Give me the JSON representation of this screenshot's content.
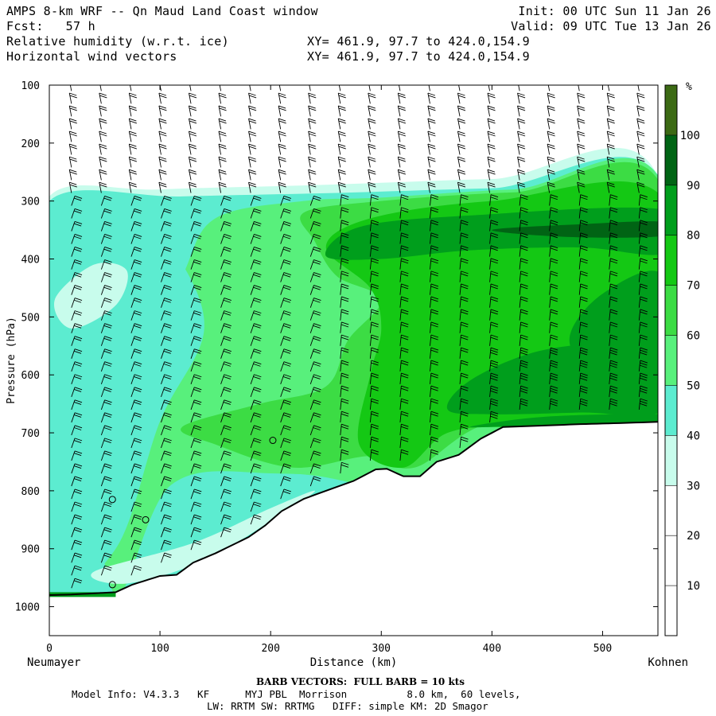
{
  "header": {
    "title": "AMPS 8-km WRF -- Qn Maud Land Coast window",
    "forecast": "Fcst:   57 h",
    "field1": "Relative humidity (w.r.t. ice)",
    "field2": "Horizontal wind vectors",
    "init": "Init: 00 UTC Sun 11 Jan 26",
    "valid": "Valid: 09 UTC Tue 13 Jan 26",
    "xy1": "XY= 461.9, 97.7 to 424.0,154.9",
    "xy2": "XY= 461.9, 97.7 to 424.0,154.9"
  },
  "footer": {
    "barb_note": "BARB VECTORS:  FULL BARB = 10 kts",
    "model_line1": "Model Info: V4.3.3   KF      MYJ PBL  Morrison          8.0 km,  60 levels,",
    "model_line2": "LW: RRTM SW: RRTMG   DIFF: simple KM: 2D Smagor"
  },
  "colors": {
    "band_30_40": "#c8fcec",
    "band_40_50": "#5cecd0",
    "band_50_60": "#58f07c",
    "band_60_70": "#3cdc44",
    "band_70_80": "#14c814",
    "band_80_90": "#009e1c",
    "band_90_100": "#006414",
    "band_100_plus": "#3c6a14",
    "terrain_line": "#000000"
  },
  "chart_data": {
    "type": "cross-section",
    "xlabel": "Distance (km)",
    "ylabel": "Pressure (hPa)",
    "xlim": [
      0,
      550
    ],
    "ylim": [
      1050,
      100
    ],
    "x_ticks": [
      0,
      100,
      200,
      300,
      400,
      500
    ],
    "y_ticks": [
      100,
      200,
      300,
      400,
      500,
      600,
      700,
      800,
      900,
      1000
    ],
    "left_endpoint_label": "Neumayer",
    "right_endpoint_label": "Kohnen",
    "colorbar": {
      "unit": "%",
      "tick_labels": [
        10,
        20,
        30,
        40,
        50,
        60,
        70,
        80,
        90,
        100
      ],
      "bounds": [
        0,
        10,
        20,
        30,
        40,
        50,
        60,
        70,
        80,
        90,
        100,
        110
      ]
    },
    "terrain_surface": {
      "x": [
        0,
        20,
        60,
        75,
        100,
        115,
        130,
        150,
        180,
        195,
        210,
        230,
        250,
        275,
        295,
        305,
        320,
        335,
        350,
        370,
        390,
        410,
        440,
        480,
        520,
        550
      ],
      "p": [
        980,
        979,
        975,
        962,
        947,
        945,
        924,
        908,
        880,
        860,
        835,
        814,
        800,
        783,
        763,
        762,
        775,
        775,
        750,
        738,
        710,
        690,
        688,
        685,
        683,
        681
      ]
    },
    "humidity_regions": [
      {
        "band": "30-40",
        "x": [
          0,
          550
        ],
        "p_top": [
          285,
          275
        ],
        "note": "cloud top edge"
      },
      {
        "band": "40-50",
        "x": [
          0,
          240
        ],
        "p_range": [
          300,
          950
        ]
      },
      {
        "band": "50-60",
        "x": [
          60,
          550
        ],
        "p_range": [
          300,
          800
        ]
      },
      {
        "band": "60-70",
        "x": [
          240,
          550
        ],
        "p_range": [
          310,
          700
        ]
      },
      {
        "band": "70-80",
        "x": [
          250,
          550
        ],
        "p_range": [
          320,
          690
        ]
      },
      {
        "band": "80-90",
        "x": [
          250,
          550
        ],
        "p_range": [
          320,
          420
        ]
      },
      {
        "band": "80-90",
        "x": [
          380,
          550
        ],
        "p_range": [
          540,
          660
        ]
      },
      {
        "band": "90-100",
        "x": [
          500,
          550
        ],
        "p_range": [
          450,
          620
        ]
      }
    ],
    "wind_barbs": {
      "note": "Full barb = 10 kts; columns every ~27 km from 20 to 550 km, levels roughly every 25 hPa down to the terrain",
      "column_x_km": [
        20,
        47,
        74,
        101,
        128,
        155,
        182,
        209,
        236,
        263,
        290,
        317,
        344,
        371,
        398,
        425,
        452,
        479,
        506,
        533
      ]
    }
  }
}
